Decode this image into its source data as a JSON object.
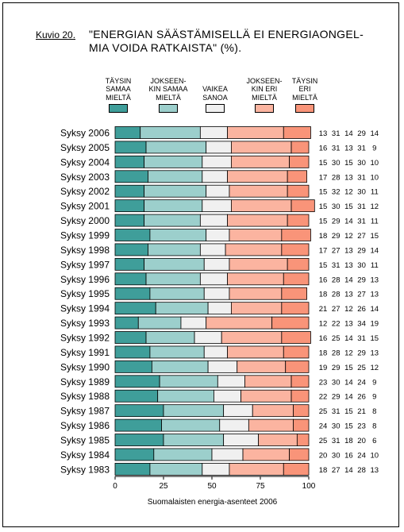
{
  "figure_label": "Kuvio 20.",
  "title_lines": [
    "\"ENERGIAN SÄÄSTÄMISELLÄ EI ENERGIAONGEL-",
    "MIA VOIDA RATKAISTA\" (%)."
  ],
  "source_note": "Suomalaisten energia-asenteet 2006",
  "chart_data": {
    "type": "bar",
    "orientation": "horizontal",
    "stacked": true,
    "title": "\"ENERGIAN SÄÄSTÄMISELLÄ EI ENERGIAONGELMIA VOIDA RATKAISTA\" (%).",
    "categories": [
      "Syksy 2006",
      "Syksy 2005",
      "Syksy 2004",
      "Syksy 2003",
      "Syksy 2002",
      "Syksy 2001",
      "Syksy 2000",
      "Syksy 1999",
      "Syksy 1998",
      "Syksy 1997",
      "Syksy 1996",
      "Syksy 1995",
      "Syksy 1994",
      "Syksy 1993",
      "Syksy 1992",
      "Syksy 1991",
      "Syksy 1990",
      "Syksy 1989",
      "Syksy 1988",
      "Syksy 1987",
      "Syksy 1986",
      "Syksy 1985",
      "Syksy 1984",
      "Syksy 1983"
    ],
    "series": [
      {
        "name": "TÄYSIN\nSAMAA\nMIELTÄ",
        "color": "#3f9e9a",
        "values": [
          13,
          16,
          15,
          17,
          15,
          15,
          15,
          18,
          17,
          15,
          16,
          18,
          21,
          12,
          16,
          18,
          19,
          23,
          22,
          25,
          24,
          25,
          20,
          18
        ]
      },
      {
        "name": "JOKSEEN-\nKIN SAMAA\nMIELTÄ",
        "color": "#9ccfcc",
        "values": [
          31,
          31,
          30,
          28,
          32,
          30,
          29,
          29,
          27,
          31,
          28,
          28,
          27,
          22,
          25,
          28,
          29,
          30,
          29,
          31,
          30,
          31,
          30,
          27
        ]
      },
      {
        "name": "VAIKEA\nSANOA",
        "color": "#f0f0f0",
        "values": [
          14,
          13,
          15,
          13,
          12,
          15,
          14,
          12,
          13,
          13,
          14,
          13,
          12,
          13,
          14,
          12,
          15,
          14,
          14,
          15,
          15,
          18,
          16,
          14
        ]
      },
      {
        "name": "JOKSEEN-\nKIN ERI\nMIELTÄ",
        "color": "#fbb4a0",
        "values": [
          29,
          31,
          30,
          31,
          30,
          31,
          31,
          27,
          29,
          30,
          29,
          27,
          26,
          34,
          31,
          29,
          25,
          24,
          26,
          21,
          23,
          20,
          24,
          28
        ]
      },
      {
        "name": "TÄYSIN\nERI\nMIELTÄ",
        "color": "#f99479",
        "values": [
          14,
          9,
          10,
          10,
          11,
          12,
          11,
          15,
          14,
          11,
          13,
          13,
          14,
          19,
          15,
          13,
          12,
          9,
          9,
          8,
          8,
          6,
          10,
          13
        ]
      }
    ],
    "xlim": [
      0,
      100
    ],
    "xticks": [
      0,
      25,
      50,
      75,
      100
    ],
    "grid": false,
    "legend_position": "top"
  }
}
